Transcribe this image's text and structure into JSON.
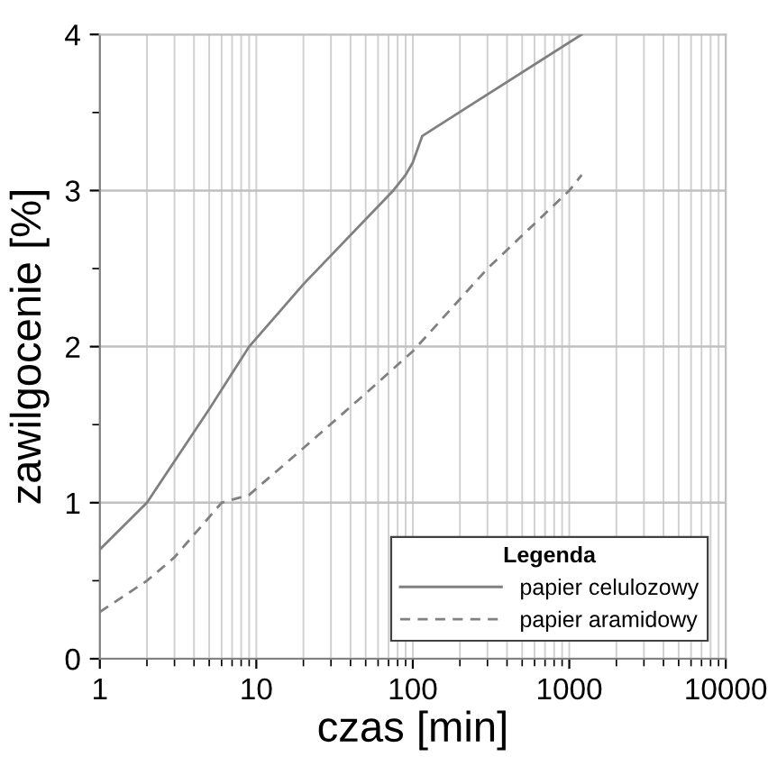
{
  "chart_data": {
    "type": "line",
    "xlabel": "czas [min]",
    "ylabel": "zawilgocenie [%]",
    "legend_title": "Legenda",
    "log": "x",
    "grid": true,
    "legend": "bottom right",
    "xlim": [
      1,
      10000
    ],
    "xticks": [
      1,
      10,
      100,
      1000,
      10000
    ],
    "ylim": [
      0,
      4
    ],
    "yticks": [
      0,
      {
        "value": 0.5,
        "label": null
      },
      1,
      {
        "value": 1.5,
        "label": null
      },
      2,
      {
        "value": 2.5,
        "label": null
      },
      3,
      {
        "value": 3.5,
        "label": null
      },
      4
    ],
    "series": [
      {
        "name": "papier celulozowy",
        "color": "#808080",
        "line_style": "solid",
        "x": [
          1,
          2,
          5,
          9,
          20,
          75,
          90,
          100,
          115,
          1200
        ],
        "values": [
          0.7,
          1.0,
          1.6,
          2.0,
          2.4,
          3.0,
          3.1,
          3.18,
          3.35,
          4.0
        ]
      },
      {
        "name": "papier aramidowy",
        "color": "#808080",
        "line_style": "dashed",
        "x": [
          1,
          2,
          3,
          6,
          9,
          20,
          50,
          100,
          300,
          1000,
          1200
        ],
        "values": [
          0.3,
          0.5,
          0.65,
          1.0,
          1.05,
          1.35,
          1.7,
          1.97,
          2.5,
          3.0,
          3.1
        ]
      }
    ]
  }
}
